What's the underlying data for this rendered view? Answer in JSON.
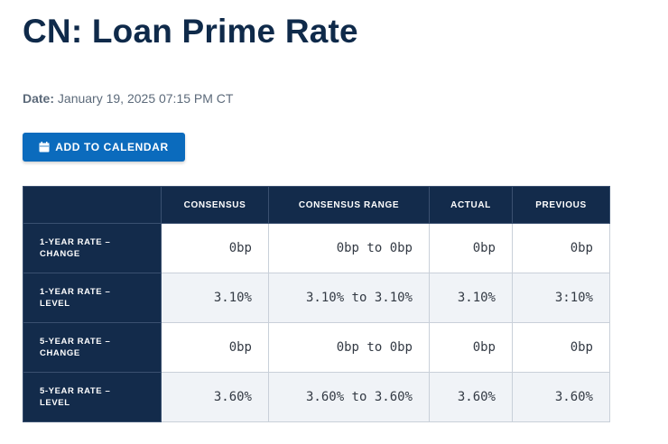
{
  "page": {
    "title": "CN: Loan Prime Rate",
    "date_label": "Date:",
    "date_value": "January 19, 2025 07:15 PM CT"
  },
  "actions": {
    "add_to_calendar_label": "ADD TO CALENDAR",
    "add_to_calendar_icon": "calendar-icon"
  },
  "table": {
    "headers": [
      "",
      "CONSENSUS",
      "CONSENSUS RANGE",
      "ACTUAL",
      "PREVIOUS"
    ],
    "rows": [
      {
        "label": [
          "1-YEAR RATE –",
          "CHANGE"
        ],
        "consensus": "0bp",
        "range": "0bp to 0bp",
        "actual": "0bp",
        "previous": "0bp"
      },
      {
        "label": [
          "1-YEAR RATE –",
          "LEVEL"
        ],
        "consensus": "3.10%",
        "range": "3.10% to 3.10%",
        "actual": "3.10%",
        "previous": "3:10%"
      },
      {
        "label": [
          "5-YEAR RATE –",
          "CHANGE"
        ],
        "consensus": "0bp",
        "range": "0bp to 0bp",
        "actual": "0bp",
        "previous": "0bp"
      },
      {
        "label": [
          "5-YEAR RATE –",
          "LEVEL"
        ],
        "consensus": "3.60%",
        "range": "3.60% to 3.60%",
        "actual": "3.60%",
        "previous": "3.60%"
      }
    ]
  },
  "colors": {
    "header_bg": "#132b4b",
    "button_bg": "#0b6bbd",
    "title_text": "#0f2a4a",
    "alt_row_bg": "#f0f3f7"
  }
}
